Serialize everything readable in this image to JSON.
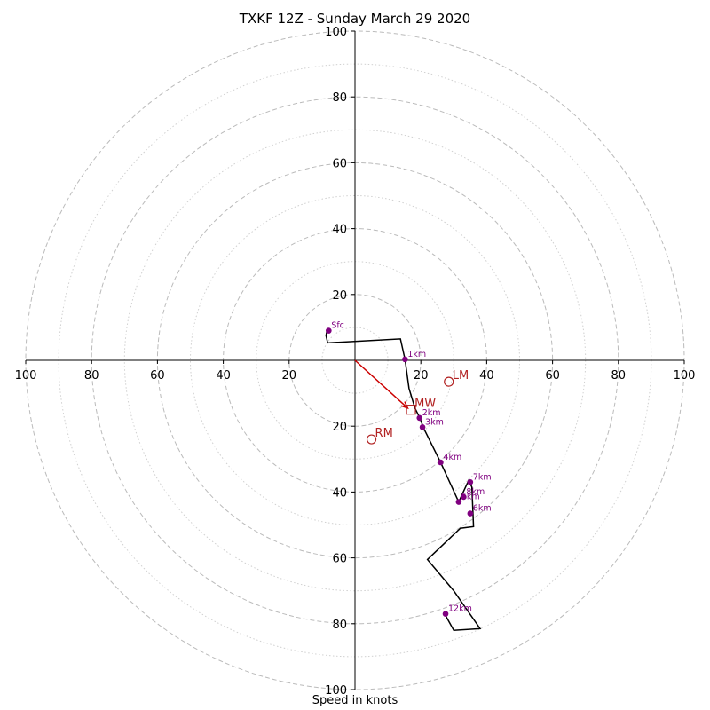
{
  "chart_data": {
    "type": "scatter",
    "title": "TXKF 12Z - Sunday March 29 2020",
    "xlabel": "Speed in knots",
    "xlim": [
      -100,
      100
    ],
    "ylim": [
      -100,
      100
    ],
    "ring_ticks": [
      20,
      40,
      60,
      80,
      100
    ],
    "x_tick_labels": [
      "100",
      "80",
      "60",
      "40",
      "20",
      "20",
      "40",
      "60",
      "80",
      "100"
    ],
    "y_tick_labels": [
      "100",
      "80",
      "60",
      "40",
      "20",
      "20",
      "40",
      "60",
      "80",
      "100"
    ],
    "grid": true,
    "colors": {
      "hodograph": "#000000",
      "height_marker": "#800080",
      "storm_motion": "#cc0000",
      "grid": "#bbbbbb"
    },
    "hodograph": {
      "u": [
        -8.5,
        -8.8,
        -8.3,
        13.8,
        15.2,
        16.4,
        18.2,
        19.7,
        20.8,
        26,
        31.5,
        34.5,
        35.5,
        36,
        32,
        22,
        30,
        38,
        30,
        27.5
      ],
      "v": [
        9.2,
        7.5,
        5.3,
        6.5,
        0.2,
        -8.5,
        -14.5,
        -17.5,
        -20.5,
        -31,
        -43,
        -36.5,
        -38.5,
        -50.5,
        -51,
        -60.5,
        -70,
        -81.5,
        -82,
        -77.5
      ]
    },
    "height_markers": [
      {
        "label": "Sfc",
        "u": -8,
        "v": 9
      },
      {
        "label": "1km",
        "u": 15.2,
        "v": 0.3
      },
      {
        "label": "2km",
        "u": 19.6,
        "v": -17.5
      },
      {
        "label": "3km",
        "u": 20.5,
        "v": -20.3
      },
      {
        "label": "4km",
        "u": 26,
        "v": -31
      },
      {
        "label": "5km",
        "u": 31.5,
        "v": -43
      },
      {
        "label": "6km",
        "u": 35,
        "v": -46.5
      },
      {
        "label": "7km",
        "u": 35,
        "v": -37
      },
      {
        "label": "8km",
        "u": 33,
        "v": -41.5
      },
      {
        "label": "12km",
        "u": 27.5,
        "v": -77
      }
    ],
    "storm_motion": [
      {
        "label": "LM",
        "u": 28.5,
        "v": -6.5,
        "marker": "circle"
      },
      {
        "label": "MW",
        "u": 17,
        "v": -15,
        "marker": "square"
      },
      {
        "label": "RM",
        "u": 5,
        "v": -24,
        "marker": "circle"
      }
    ],
    "mean_wind_vector": {
      "u": 16,
      "v": -14.5
    }
  }
}
